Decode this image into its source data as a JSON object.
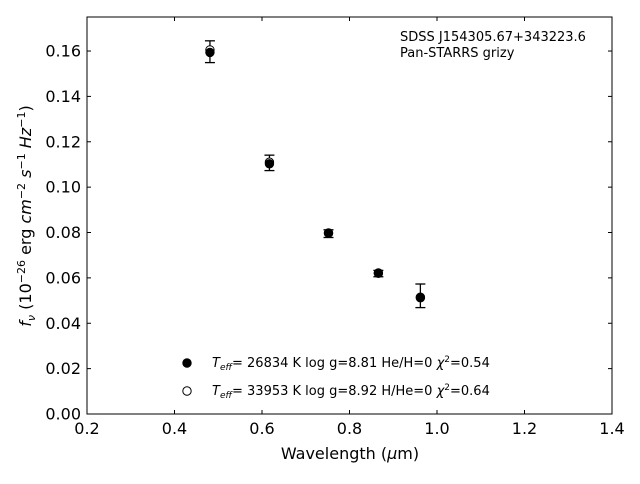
{
  "chart_data": {
    "type": "scatter",
    "title": "",
    "annotation": [
      "SDSS J154305.67+343223.6",
      "Pan-STARRS grizy"
    ],
    "xlabel": {
      "pre": "Wavelength (",
      "mu": "μ",
      "post": "m)"
    },
    "ylabel": {
      "f": "f",
      "sub": "ν",
      "a": " (10",
      "exp1": "−26",
      "b": " erg ",
      "cm": "cm",
      "exp2": "−2",
      "s": "s",
      "exp3": "−1",
      "hz": "Hz",
      "exp4": "−1",
      "end": ")"
    },
    "xlim": [
      0.2,
      1.4
    ],
    "ylim": [
      0.0,
      0.175
    ],
    "xticks": [
      0.2,
      0.4,
      0.6,
      0.8,
      1.0,
      1.2,
      1.4
    ],
    "xtick_labels": [
      "0.2",
      "0.4",
      "0.6",
      "0.8",
      "1.0",
      "1.2",
      "1.4"
    ],
    "yticks": [
      0.0,
      0.02,
      0.04,
      0.06,
      0.08,
      0.1,
      0.12,
      0.14,
      0.16
    ],
    "ytick_labels": [
      "0.00",
      "0.02",
      "0.04",
      "0.06",
      "0.08",
      "0.10",
      "0.12",
      "0.14",
      "0.16"
    ],
    "grid": false,
    "legend_position": "lower-center",
    "observed": {
      "x": [
        0.481,
        0.617,
        0.752,
        0.866,
        0.962
      ],
      "y": [
        0.1597,
        0.1107,
        0.0795,
        0.0619,
        0.0521
      ],
      "err": [
        0.0048,
        0.0034,
        0.0017,
        0.0014,
        0.0052
      ],
      "color": "#000000"
    },
    "series": [
      {
        "name": "Teff= 26834 K  log g=8.81  He/H=0  χ2=0.54",
        "legend": {
          "t": "T",
          "sub": "eff",
          "rest": "= 26834 K  log g=8.81  He/H=0  ",
          "chi": "χ",
          "sup": "2",
          "end": "=0.54"
        },
        "marker": "filled-circle",
        "x": [
          0.481,
          0.617,
          0.752,
          0.866,
          0.962
        ],
        "y": [
          0.1594,
          0.1103,
          0.0797,
          0.062,
          0.0515
        ]
      },
      {
        "name": "Teff= 33953 K  log g=8.92  H/He=0  χ2=0.64",
        "legend": {
          "t": "T",
          "sub": "eff",
          "rest": "= 33953 K  log g=8.92  H/He=0  ",
          "chi": "χ",
          "sup": "2",
          "end": "=0.64"
        },
        "marker": "open-circle",
        "x": [
          0.481,
          0.617,
          0.752,
          0.866,
          0.962
        ],
        "y": [
          0.1605,
          0.111,
          0.0798,
          0.0622,
          0.0512
        ]
      }
    ]
  }
}
